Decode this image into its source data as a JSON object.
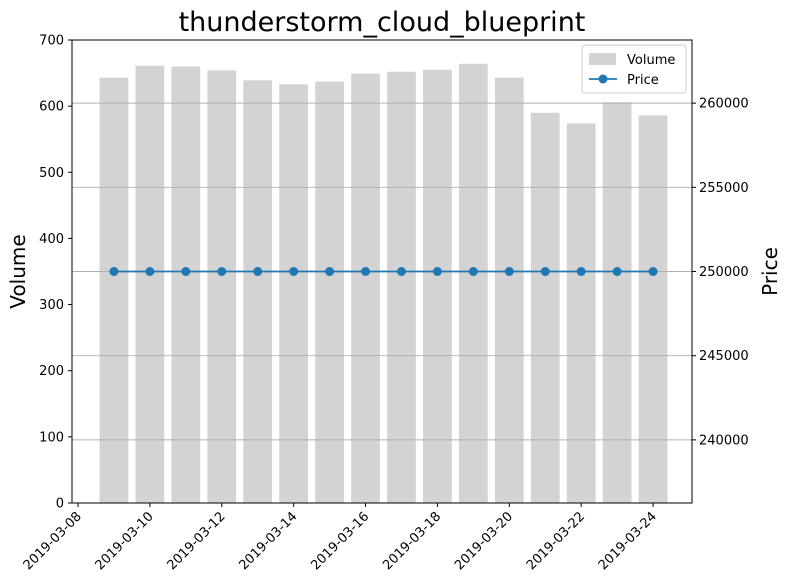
{
  "chart_data": {
    "type": "bar",
    "title": "thunderstorm_cloud_blueprint",
    "x": [
      "2019-03-09",
      "2019-03-10",
      "2019-03-11",
      "2019-03-12",
      "2019-03-13",
      "2019-03-14",
      "2019-03-15",
      "2019-03-16",
      "2019-03-17",
      "2019-03-18",
      "2019-03-19",
      "2019-03-20",
      "2019-03-21",
      "2019-03-22",
      "2019-03-23",
      "2019-03-24"
    ],
    "series": [
      {
        "name": "Volume",
        "type": "bar",
        "axis": "left",
        "values": [
          643,
          661,
          660,
          654,
          639,
          633,
          637,
          649,
          652,
          655,
          664,
          643,
          590,
          574,
          606,
          586
        ]
      },
      {
        "name": "Price",
        "type": "line",
        "axis": "right",
        "values": [
          250000,
          250000,
          250000,
          250000,
          250000,
          250000,
          250000,
          250000,
          250000,
          250000,
          250000,
          250000,
          250000,
          250000,
          250000,
          250000
        ]
      }
    ],
    "x_ticks": [
      "2019-03-08",
      "2019-03-10",
      "2019-03-12",
      "2019-03-14",
      "2019-03-16",
      "2019-03-18",
      "2019-03-20",
      "2019-03-22",
      "2019-03-24"
    ],
    "xlim": [
      "2019-03-07T20:00",
      "2019-03-25T02:00"
    ],
    "ylabel": "Volume",
    "ylim": [
      0,
      700
    ],
    "y_ticks": [
      0,
      100,
      200,
      300,
      400,
      500,
      600,
      700
    ],
    "y2label": "Price",
    "y2lim": [
      236250,
      263750
    ],
    "y2_ticks": [
      240000,
      245000,
      250000,
      255000,
      260000
    ],
    "grid": "horizontal lines at right-axis ticks",
    "legend_position": "top-right",
    "colors": {
      "bar": "#d3d3d3",
      "line": "#1f77b4"
    }
  }
}
